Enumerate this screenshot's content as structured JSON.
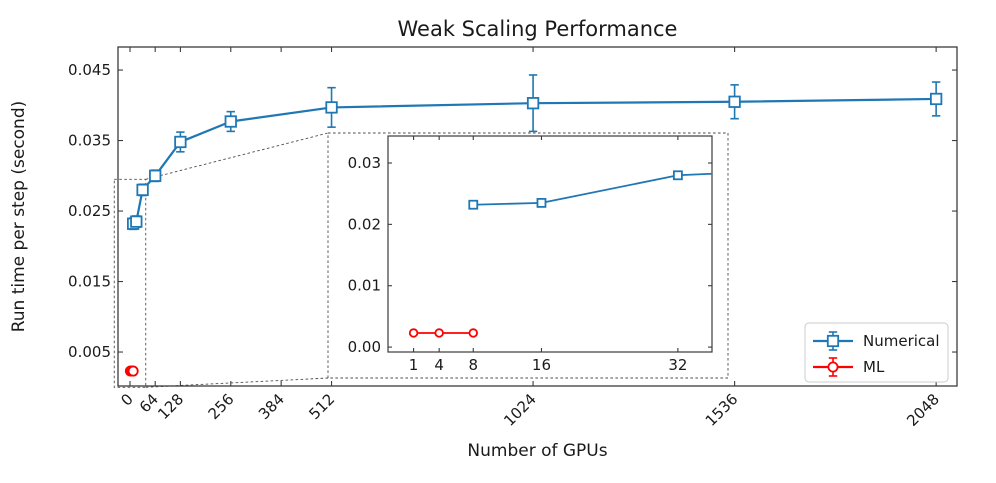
{
  "chart_data": {
    "type": "line",
    "title": "Weak Scaling Performance",
    "xlabel": "Number of GPUs",
    "ylabel": "Run time per step (second)",
    "grid": false,
    "legend": {
      "position": "lower right",
      "entries": [
        {
          "label": "Numerical",
          "color": "#1f77b4",
          "marker": "square"
        },
        {
          "label": "ML",
          "color": "#ff0000",
          "marker": "circle"
        }
      ]
    },
    "main_axes": {
      "xlim": [
        -30.5,
        2101
      ],
      "ylim": [
        0.00018,
        0.04827
      ],
      "xticks": [
        0,
        64,
        128,
        256,
        384,
        512,
        1024,
        1536,
        2048
      ],
      "xtick_labels": [
        "0",
        "64",
        "128",
        "256",
        "384",
        "512",
        "1024",
        "1536",
        "2048"
      ],
      "xtick_rotation": 45,
      "yticks": [
        0.005,
        0.015,
        0.025,
        0.035,
        0.045
      ],
      "ytick_labels": [
        "0.005",
        "0.015",
        "0.025",
        "0.035",
        "0.045"
      ]
    },
    "series": [
      {
        "name": "Numerical",
        "color": "#1f77b4",
        "marker": "square",
        "x": [
          8,
          16,
          32,
          64,
          128,
          256,
          512,
          1024,
          1536,
          2048
        ],
        "y": [
          0.0232,
          0.0235,
          0.028,
          0.03,
          0.0348,
          0.0377,
          0.0397,
          0.0403,
          0.0405,
          0.0409
        ],
        "yerr": [
          0.0008,
          0.0008,
          0.0008,
          0.0008,
          0.0014,
          0.0014,
          0.0028,
          0.004,
          0.0024,
          0.0024
        ]
      },
      {
        "name": "ML",
        "color": "#ff0000",
        "marker": "circle",
        "x": [
          1,
          4,
          8
        ],
        "y": [
          0.0023,
          0.0023,
          0.0023
        ],
        "yerr": [
          0.0002,
          0.0002,
          0.0002
        ]
      }
    ],
    "inset_axes": {
      "xlim": [
        -2,
        36
      ],
      "ylim": [
        -0.0008,
        0.0344
      ],
      "xticks": [
        1,
        4,
        8,
        16,
        32
      ],
      "xtick_labels": [
        "1",
        "4",
        "8",
        "16",
        "32"
      ],
      "yticks": [
        0,
        0.01,
        0.02,
        0.03
      ],
      "ytick_labels": [
        "0.00",
        "0.01",
        "0.02",
        "0.03"
      ]
    },
    "zoom_region": {
      "x0": -40,
      "x1": 40,
      "y0": 0.0,
      "y1": 0.0295
    }
  }
}
